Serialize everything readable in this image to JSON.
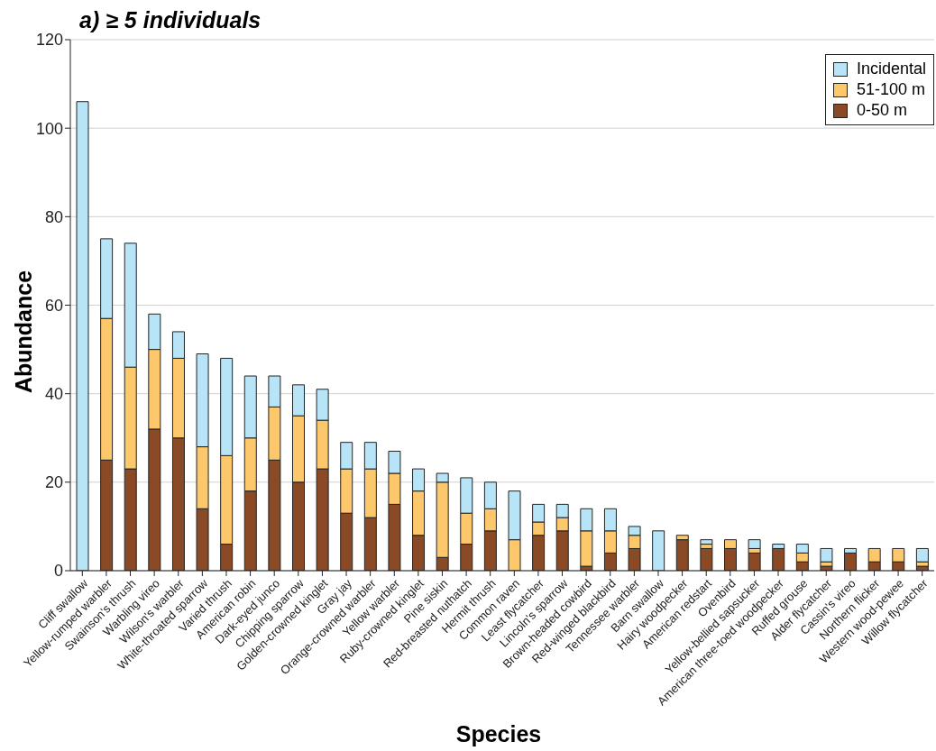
{
  "chart_data": {
    "type": "bar",
    "title": "a) ≥ 5 individuals",
    "xlabel": "Species",
    "ylabel": "Abundance",
    "categories": [
      "Cliff swallow",
      "Yellow-rumped warbler",
      "Swainson's thrush",
      "Warbling vireo",
      "Wilson's warbler",
      "White-throated sparrow",
      "Varied thrush",
      "American robin",
      "Dark-eyed junco",
      "Chipping sparrow",
      "Golden-crowned kinglet",
      "Gray jay",
      "Orange-crowned warbler",
      "Yellow warbler",
      "Ruby-crowned kinglet",
      "Pine siskin",
      "Red-breasted nuthatch",
      "Hermit thrush",
      "Common raven",
      "Least flycatcher",
      "Lincoln's sparrow",
      "Brown-headed cowbird",
      "Red-winged blackbird",
      "Tennessee warbler",
      "Barn swallow",
      "Hairy woodpecker",
      "American redstart",
      "Ovenbird",
      "Yellow-bellied sapsucker",
      "American three-toed woodpecker",
      "Ruffed grouse",
      "Alder flycatcher",
      "Cassin's vireo",
      "Northern flicker",
      "Western wood-pewee",
      "Willow flycatcher"
    ],
    "series": [
      {
        "name": "0-50 m",
        "color": "#8b4a26",
        "values": [
          0,
          25,
          23,
          32,
          30,
          14,
          6,
          18,
          25,
          20,
          23,
          13,
          12,
          15,
          8,
          3,
          6,
          9,
          0,
          8,
          9,
          1,
          4,
          5,
          0,
          7,
          5,
          5,
          4,
          5,
          2,
          1,
          4,
          2,
          2,
          1
        ]
      },
      {
        "name": "51-100 m",
        "color": "#fdc76b",
        "values": [
          0,
          32,
          23,
          18,
          18,
          14,
          20,
          12,
          12,
          15,
          11,
          10,
          11,
          7,
          10,
          17,
          7,
          5,
          7,
          3,
          3,
          8,
          5,
          3,
          0,
          1,
          1,
          2,
          1,
          0,
          2,
          1,
          0,
          3,
          3,
          1
        ]
      },
      {
        "name": "Incidental",
        "color": "#b8e4f8",
        "values": [
          106,
          18,
          28,
          8,
          6,
          21,
          22,
          14,
          7,
          7,
          7,
          6,
          6,
          5,
          5,
          2,
          8,
          6,
          11,
          4,
          3,
          5,
          5,
          2,
          9,
          0,
          1,
          0,
          2,
          1,
          2,
          3,
          1,
          0,
          0,
          3
        ]
      }
    ],
    "stacked": true,
    "ylim": [
      0,
      120
    ],
    "yticks": [
      0,
      20,
      40,
      60,
      80,
      100,
      120
    ],
    "grid": "y",
    "legend": "top right"
  }
}
